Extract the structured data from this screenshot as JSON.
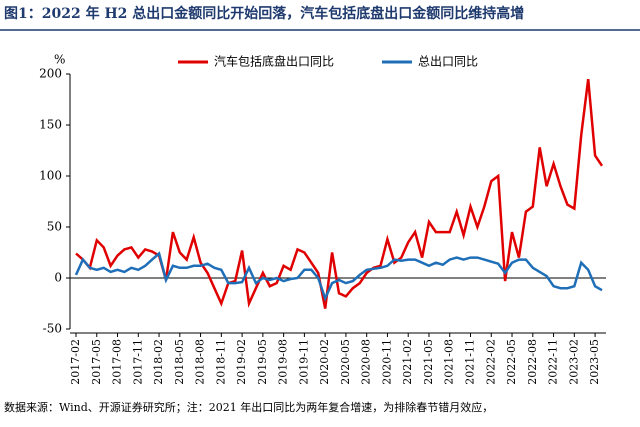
{
  "chart_data": {
    "type": "line",
    "title": "图1：2022 年 H2 总出口金额同比开始回落，汽车包括底盘出口金额同比维持高增",
    "y_label": "%",
    "note": "数据来源：Wind、开源证券研究所；注：2021 年出口同比为两年复合增速，为排除春节错月效应，",
    "categories": [
      "2017-02",
      null,
      null,
      "2017-05",
      null,
      null,
      "2017-08",
      null,
      null,
      "2017-11",
      null,
      null,
      "2018-02",
      null,
      null,
      "2018-05",
      null,
      null,
      "2018-08",
      null,
      null,
      "2018-11",
      null,
      null,
      "2019-02",
      null,
      null,
      "2019-05",
      null,
      null,
      "2019-08",
      null,
      null,
      "2019-11",
      null,
      null,
      "2020-02",
      null,
      null,
      "2020-05",
      null,
      null,
      "2020-08",
      null,
      null,
      "2020-11",
      null,
      null,
      "2021-02",
      null,
      null,
      "2021-05",
      null,
      null,
      "2021-08",
      null,
      null,
      "2021-11",
      null,
      null,
      "2022-02",
      null,
      null,
      "2022-05",
      null,
      null,
      "2022-08",
      null,
      null,
      "2022-11",
      null,
      null,
      "2023-02",
      null,
      null,
      "2023-05",
      null
    ],
    "series": [
      {
        "name": "汽车包括底盘出口同比",
        "color": "#e00000",
        "values": [
          24,
          18,
          10,
          37,
          30,
          12,
          22,
          28,
          30,
          20,
          28,
          26,
          22,
          -2,
          45,
          25,
          18,
          40,
          15,
          5,
          -10,
          -25,
          -5,
          -3,
          27,
          -25,
          -10,
          5,
          -8,
          -5,
          12,
          8,
          28,
          25,
          15,
          5,
          -30,
          25,
          -15,
          -18,
          -10,
          -5,
          5,
          10,
          12,
          38,
          15,
          20,
          35,
          45,
          20,
          55,
          45,
          45,
          45,
          65,
          42,
          70,
          50,
          70,
          95,
          100,
          -3,
          45,
          20,
          65,
          70,
          128,
          90,
          112,
          90,
          72,
          68,
          140,
          195,
          120,
          110
        ]
      },
      {
        "name": "总出口同比",
        "color": "#1f6fb8",
        "values": [
          3,
          18,
          10,
          8,
          10,
          6,
          8,
          6,
          10,
          8,
          12,
          18,
          24,
          -2,
          12,
          10,
          10,
          12,
          12,
          14,
          10,
          8,
          -5,
          -5,
          -4,
          10,
          -5,
          0,
          -2,
          0,
          -3,
          -1,
          0,
          8,
          8,
          0,
          -20,
          -5,
          -2,
          -5,
          -3,
          3,
          8,
          9,
          10,
          12,
          18,
          17,
          18,
          18,
          15,
          12,
          15,
          13,
          18,
          20,
          18,
          20,
          20,
          18,
          16,
          14,
          5,
          15,
          18,
          18,
          10,
          6,
          2,
          -8,
          -10,
          -10,
          -8,
          15,
          8,
          -8,
          -12
        ]
      }
    ],
    "ylim": [
      -50,
      200
    ],
    "yticks": [
      -50,
      0,
      50,
      100,
      150,
      200
    ],
    "legend": "top"
  }
}
